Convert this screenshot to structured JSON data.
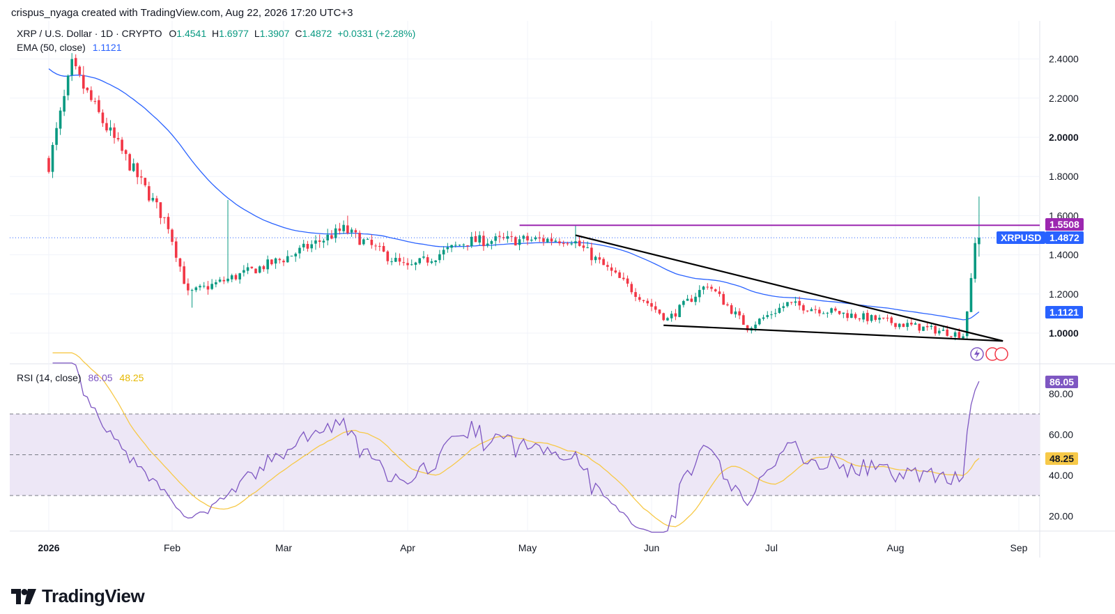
{
  "header": {
    "creator_line": "crispus_nyaga created with TradingView.com, Aug 22, 2026 17:20 UTC+3"
  },
  "legend": {
    "symbol": "XRP / U.S. Dollar · 1D · CRYPTO",
    "o_label": "O",
    "o_value": "1.4541",
    "h_label": "H",
    "h_value": "1.6977",
    "l_label": "L",
    "l_value": "1.3907",
    "c_label": "C",
    "c_value": "1.4872",
    "change": "+0.0331 (+2.28%)",
    "ema_label": "EMA (50, close)",
    "ema_value": "1.1121",
    "rsi_label": "RSI (14, close)",
    "rsi_value": "86.05",
    "rsi_ma_value": "48.25"
  },
  "tags": {
    "resistance": "1.5508",
    "symbol_tag": "XRPUSD",
    "price": "1.4872",
    "ema": "1.1121",
    "rsi": "86.05",
    "rsi_ma": "48.25"
  },
  "brand": {
    "name": "TradingView"
  },
  "colors": {
    "up": "#089981",
    "down": "#f23645",
    "ema": "#2962ff",
    "resistance": "#9c27b0",
    "rsi": "#7e57c2",
    "rsi_ma": "#f7c948",
    "rsi_band": "#ede7f6",
    "price_tag": "#2962ff"
  },
  "chart_data": [
    {
      "type": "candlestick",
      "title": "XRP / U.S. Dollar · 1D · CRYPTO",
      "y_ticks": [
        "2.4000",
        "2.2000",
        "2.0000",
        "1.8000",
        "1.6000",
        "1.4000",
        "1.2000",
        "1.0000"
      ],
      "x_ticks": [
        "2026",
        "Feb",
        "Mar",
        "Apr",
        "May",
        "Jun",
        "Jul",
        "Aug",
        "Sep"
      ],
      "ylim": [
        0.86,
        2.5
      ],
      "key_points": [
        {
          "date": "2025-12-31",
          "close": 1.86
        },
        {
          "date": "2026-01-06",
          "close": 2.36
        },
        {
          "date": "2026-01-14",
          "close": 2.08
        },
        {
          "date": "2026-01-31",
          "close": 1.55
        },
        {
          "date": "2026-02-05",
          "close": 1.2
        },
        {
          "date": "2026-03-01",
          "close": 1.38
        },
        {
          "date": "2026-03-16",
          "close": 1.53
        },
        {
          "date": "2026-04-01",
          "close": 1.33
        },
        {
          "date": "2026-04-16",
          "close": 1.47
        },
        {
          "date": "2026-05-12",
          "close": 1.48
        },
        {
          "date": "2026-06-05",
          "close": 1.07
        },
        {
          "date": "2026-06-15",
          "close": 1.25
        },
        {
          "date": "2026-06-25",
          "close": 1.03
        },
        {
          "date": "2026-07-05",
          "close": 1.15
        },
        {
          "date": "2026-08-18",
          "close": 0.99
        },
        {
          "date": "2026-08-19",
          "close": 1.12
        },
        {
          "date": "2026-08-20",
          "close": 1.26
        },
        {
          "date": "2026-08-21",
          "close": 1.4541
        },
        {
          "date": "2026-08-22",
          "open": 1.4541,
          "high": 1.6977,
          "low": 1.3907,
          "close": 1.4872
        }
      ],
      "ema50": {
        "name": "EMA (50, close)",
        "last": 1.1121
      },
      "resistance_level": 1.5508,
      "current_price": 1.4872,
      "trendlines": [
        {
          "from": {
            "date": "2026-05-13",
            "value": 1.5
          },
          "to": {
            "date": "2026-08-28",
            "value": 0.96
          }
        },
        {
          "from": {
            "date": "2026-06-04",
            "value": 1.04
          },
          "to": {
            "date": "2026-08-28",
            "value": 0.96
          }
        }
      ]
    },
    {
      "type": "line",
      "title": "RSI (14, close)",
      "y_ticks": [
        "80.00",
        "60.00",
        "40.00",
        "20.00"
      ],
      "ylim": [
        12,
        95
      ],
      "band": [
        30,
        70
      ],
      "midline": 50,
      "series": [
        {
          "name": "RSI",
          "last": 86.05
        },
        {
          "name": "RSI MA",
          "last": 48.25
        }
      ]
    }
  ]
}
